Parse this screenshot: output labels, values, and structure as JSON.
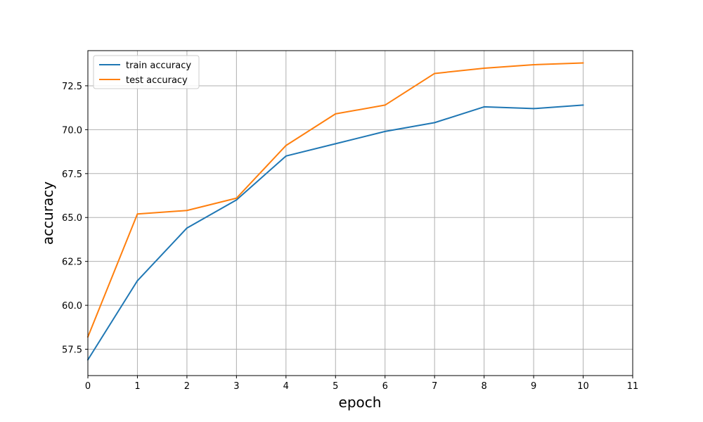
{
  "chart_data": {
    "type": "line",
    "xlabel": "epoch",
    "ylabel": "accuracy",
    "xlim": [
      0,
      11
    ],
    "ylim": [
      56.0,
      74.5
    ],
    "xticks": [
      0,
      1,
      2,
      3,
      4,
      5,
      6,
      7,
      8,
      9,
      10,
      11
    ],
    "yticks": [
      57.5,
      60.0,
      62.5,
      65.0,
      67.5,
      70.0,
      72.5
    ],
    "ytick_labels": [
      "57.5",
      "60.0",
      "62.5",
      "65.0",
      "67.5",
      "70.0",
      "72.5"
    ],
    "grid": true,
    "legend_position": "top-left",
    "x": [
      0,
      1,
      2,
      3,
      4,
      5,
      6,
      7,
      8,
      9,
      10
    ],
    "series": [
      {
        "name": "train accuracy",
        "color": "#1f77b4",
        "values": [
          56.9,
          61.4,
          64.4,
          66.0,
          68.5,
          69.2,
          69.9,
          70.4,
          71.3,
          71.2,
          71.4
        ]
      },
      {
        "name": "test accuracy",
        "color": "#ff7f0e",
        "values": [
          58.2,
          65.2,
          65.4,
          66.1,
          69.1,
          70.9,
          71.4,
          73.2,
          73.5,
          73.7,
          73.8
        ]
      }
    ]
  }
}
